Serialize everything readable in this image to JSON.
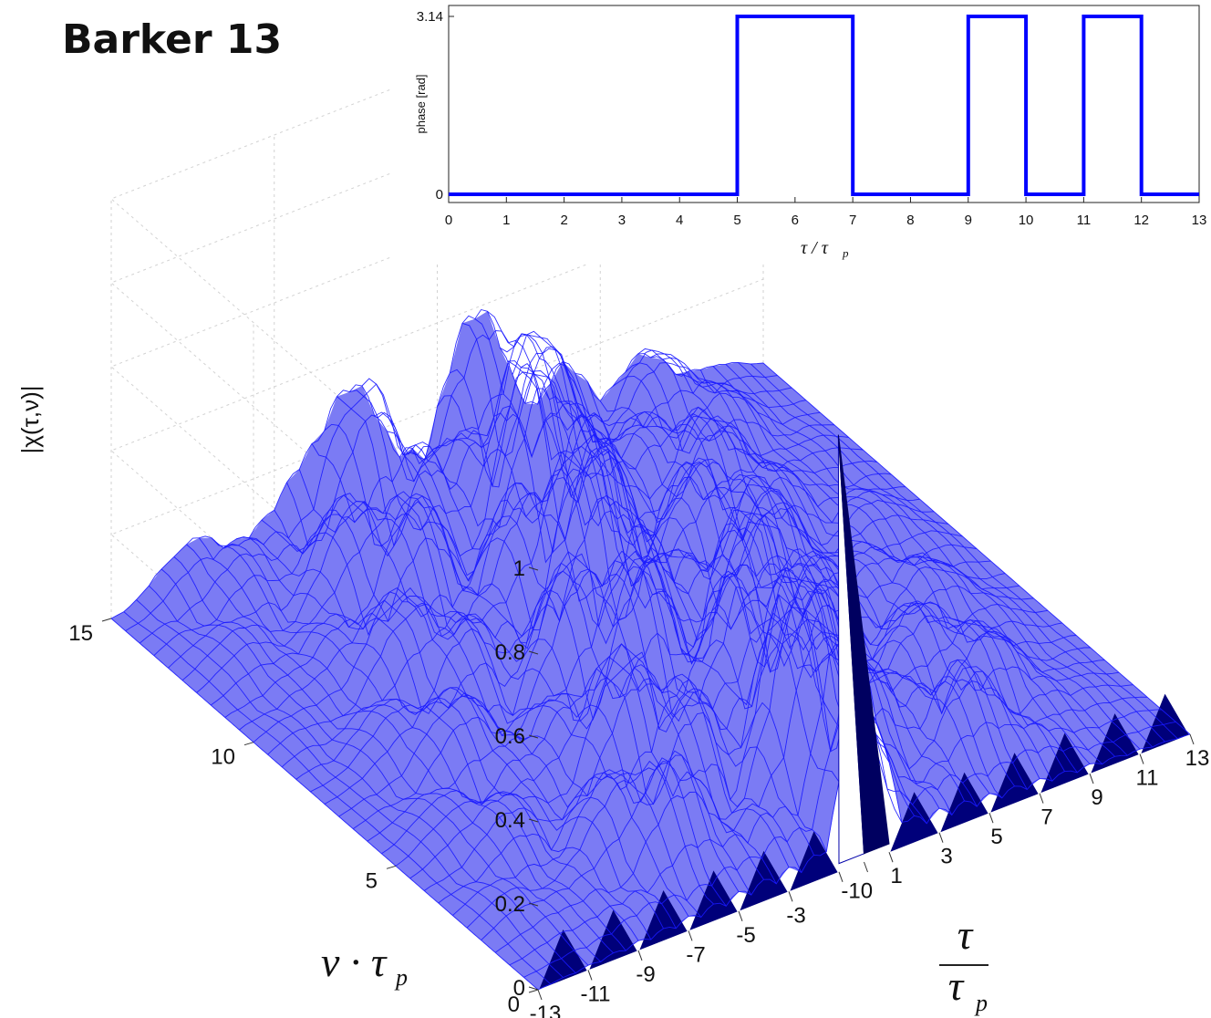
{
  "page_title": "Barker 13",
  "chart_data": [
    {
      "type": "surface",
      "title": "",
      "zlabel": "|χ(τ,ν)|",
      "xlabel_num": "τ",
      "xlabel_den": "τ",
      "xlabel_den_sub": "p",
      "ylabel_main": "ν · τ",
      "ylabel_sub": "p",
      "zticks": [
        0,
        0.2,
        0.4,
        0.6,
        0.8,
        1
      ],
      "zlim": [
        0,
        1
      ],
      "xticks": [
        -13,
        -11,
        -9,
        -7,
        -5,
        -3,
        -1,
        0,
        1,
        3,
        5,
        7,
        9,
        11,
        13
      ],
      "xlim": [
        -13,
        13
      ],
      "yticks": [
        0,
        5,
        10,
        15
      ],
      "ylim": [
        0,
        15
      ],
      "peak": {
        "tau": 0,
        "nu": 0,
        "value": 1
      },
      "zero_doppler_cut": [
        {
          "tau": -12,
          "value": 0.077
        },
        {
          "tau": -10,
          "value": 0.077
        },
        {
          "tau": -8,
          "value": 0.077
        },
        {
          "tau": -6,
          "value": 0.077
        },
        {
          "tau": -4,
          "value": 0.077
        },
        {
          "tau": -2,
          "value": 0.077
        },
        {
          "tau": 0,
          "value": 1
        },
        {
          "tau": 2,
          "value": 0.077
        },
        {
          "tau": 4,
          "value": 0.077
        },
        {
          "tau": 6,
          "value": 0.077
        },
        {
          "tau": 8,
          "value": 0.077
        },
        {
          "tau": 10,
          "value": 0.077
        },
        {
          "tau": 12,
          "value": 0.077
        }
      ],
      "grid": true,
      "colors": {
        "mesh": "#1a1aff",
        "fill": "#6a6af2",
        "dark": "#00007a"
      }
    },
    {
      "type": "line",
      "title": "",
      "xlabel": "τ / τ",
      "xlabel_sub": "p",
      "ylabel": "phase [rad]",
      "x": [
        0,
        5,
        5,
        7,
        7,
        9,
        9,
        10,
        10,
        11,
        11,
        12,
        12,
        13
      ],
      "y": [
        0,
        0,
        3.14,
        3.14,
        0,
        0,
        3.14,
        3.14,
        0,
        0,
        3.14,
        3.14,
        0,
        0
      ],
      "xticks": [
        0,
        1,
        2,
        3,
        4,
        5,
        6,
        7,
        8,
        9,
        10,
        11,
        12,
        13
      ],
      "yticks": [
        0,
        3.14
      ],
      "ytick_labels": [
        "0",
        "3.14"
      ],
      "xlim": [
        0,
        13
      ],
      "ylim": [
        0,
        3.14
      ],
      "grid": false,
      "colors": {
        "line": "#0000ff"
      }
    }
  ]
}
